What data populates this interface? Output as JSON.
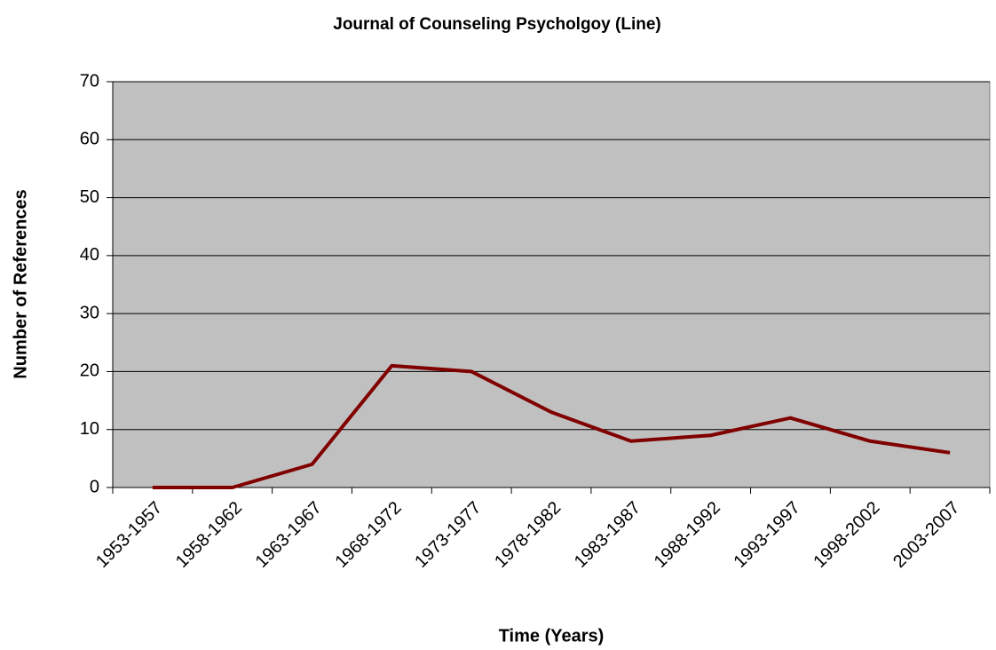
{
  "chart_data": {
    "type": "line",
    "title": "Journal of Counseling Psycholgoy (Line)",
    "x_label": "Time (Years)",
    "y_label": "Number of References",
    "categories": [
      "1953-1957",
      "1958-1962",
      "1963-1967",
      "1968-1972",
      "1973-1977",
      "1978-1982",
      "1983-1987",
      "1988-1992",
      "1993-1997",
      "1998-2002",
      "2003-2007"
    ],
    "series": [
      {
        "name": "Journal of Counseling Psycholgoy",
        "color": "#800000",
        "values": [
          0,
          0,
          4,
          21,
          20,
          13,
          8,
          9,
          12,
          8,
          6
        ]
      }
    ],
    "ylim": [
      0,
      70
    ],
    "yticks": [
      0,
      10,
      20,
      30,
      40,
      50,
      60,
      70
    ],
    "grid": true,
    "plot_background": "#c0c0c0"
  }
}
